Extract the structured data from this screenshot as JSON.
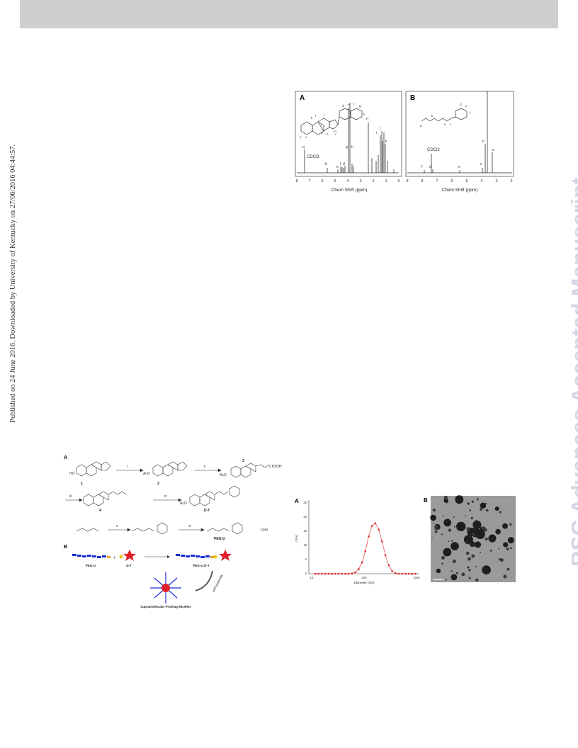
{
  "side_note": "Published on 24 June 2016. Downloaded by University of Kentucky on 27/06/2016 04:44:57.",
  "watermark": "RSC Advances Accepted Manuscript",
  "nmr": {
    "panel_a": {
      "label": "A",
      "xlabel": "Chem Shift (ppm)",
      "ticks": [
        "8",
        "7",
        "6",
        "5",
        "4",
        "3",
        "2",
        "1",
        "0"
      ],
      "solvent_label": "CDCl3",
      "peak_letters": [
        "q",
        "b",
        "e",
        "f",
        "d",
        "g",
        "h",
        "n",
        "i",
        "l",
        "k"
      ],
      "structure_letters": [
        "k",
        "l",
        "j",
        "m",
        "n",
        "o",
        "a",
        "b",
        "c",
        "d",
        "e",
        "f",
        "g",
        "h"
      ]
    },
    "panel_b": {
      "label": "B",
      "xlabel": "Chem Shift (ppm)",
      "ticks": [
        "9",
        "8",
        "7",
        "6",
        "5",
        "4",
        "3",
        "2"
      ],
      "solvent_label": "CDCl3",
      "peak_letters": [
        "f",
        "d",
        "e",
        "c",
        "b",
        "a"
      ],
      "structure_letters": [
        "a",
        "b",
        "c",
        "d",
        "e",
        "f"
      ],
      "subscript": "n"
    }
  },
  "scheme": {
    "panel_a_label": "A",
    "panel_b_label": "B",
    "compound_numbers": [
      "1",
      "2",
      "3",
      "4"
    ],
    "step_labels": [
      "i",
      "ii",
      "iii",
      "iv",
      "v",
      "vi"
    ],
    "product_labels": [
      "D-T",
      "PEG-U"
    ],
    "group_labels": [
      "HO",
      "AcO",
      "AcO",
      "AcO",
      "CH3",
      "CH2OH"
    ],
    "bottom_labels": [
      "PEG-U",
      "D-T",
      "PEG-U:D-T"
    ],
    "assembly_label": "self-assembly",
    "micelle_label": "Supramolecular Prodrug Micelles"
  },
  "dls": {
    "label": "A",
    "ylabel": "I (%)",
    "xlabel": "Diameter (nm)",
    "y_ticks": [
      "0",
      "5",
      "10",
      "15",
      "20",
      "25"
    ],
    "x_ticks": [
      "10",
      "100",
      "1000"
    ]
  },
  "tem": {
    "label": "B"
  },
  "chart_data": {
    "type": "line",
    "title": "",
    "xlabel": "Diameter (nm)",
    "ylabel": "I (%)",
    "x_scale": "log",
    "xlim": [
      10,
      1000
    ],
    "ylim": [
      0,
      25
    ],
    "grid": false,
    "series": [
      {
        "color": "#e02020",
        "x": [
          11.7,
          13.5,
          15.7,
          18.2,
          21.0,
          24.4,
          28.2,
          32.7,
          37.8,
          43.8,
          50.7,
          58.8,
          68.1,
          78.8,
          91.3,
          105.7,
          122.4,
          141.8,
          164.2,
          190.1,
          220.2,
          255.0,
          295.3,
          342.0,
          396.1,
          458.7,
          531.2,
          615.1,
          712.4,
          825.0,
          955.4
        ],
        "y": [
          0,
          0,
          0,
          0,
          0,
          0,
          0,
          0,
          0,
          0,
          0,
          0.1,
          0.5,
          1.6,
          4.0,
          8.0,
          13.2,
          16.9,
          17.8,
          15.6,
          11.4,
          6.6,
          3.0,
          1.0,
          0.2,
          0,
          0,
          0,
          0,
          0,
          0
        ]
      }
    ]
  }
}
